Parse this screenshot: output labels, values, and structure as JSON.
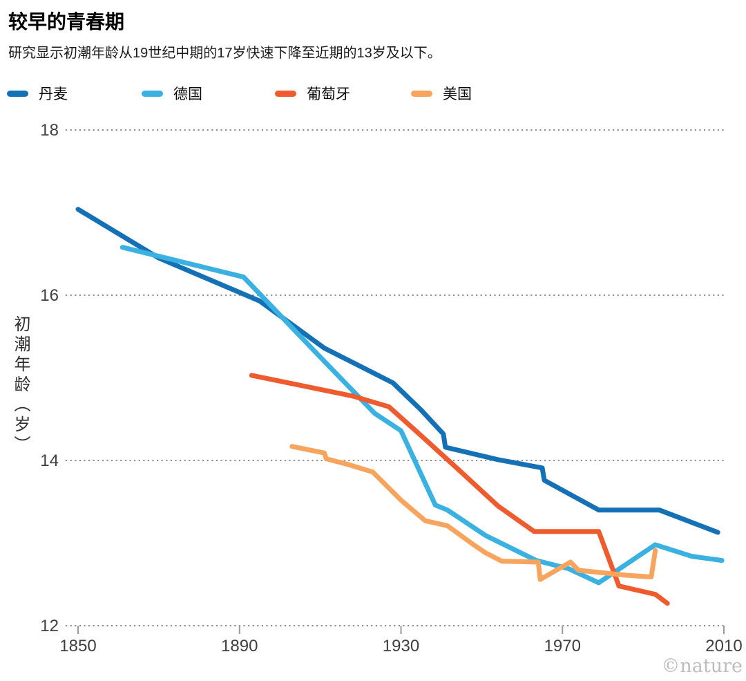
{
  "chart_data": {
    "type": "line",
    "title": "较早的青春期",
    "subtitle": "研究显示初潮年龄从19世纪中期的17岁快速下降至近期的13岁及以下。",
    "ylabel": "初潮年龄（岁）",
    "watermark": "©nature",
    "xlim": [
      1850,
      2010
    ],
    "ylim": [
      12,
      18
    ],
    "xticks": [
      1850,
      1890,
      1930,
      1970,
      2010
    ],
    "yticks": [
      18,
      16,
      14,
      12
    ],
    "grid": "horizontal-dotted",
    "legend_position": "top-left",
    "colors": {
      "grid": "#8c8c8c",
      "tick": "#9a9a9a",
      "axis_text": "#3f3f3f"
    },
    "series": [
      {
        "id": "denmark",
        "name": "丹麦",
        "color": "#1571b5",
        "points": [
          [
            1850,
            17.04
          ],
          [
            1870,
            16.45
          ],
          [
            1895,
            15.93
          ],
          [
            1911,
            15.36
          ],
          [
            1928,
            14.94
          ],
          [
            1935,
            14.61
          ],
          [
            1940.5,
            14.32
          ],
          [
            1941,
            14.16
          ],
          [
            1954,
            14.01
          ],
          [
            1965,
            13.91
          ],
          [
            1965.5,
            13.76
          ],
          [
            1979,
            13.4
          ],
          [
            1994,
            13.4
          ],
          [
            2008.5,
            13.13
          ]
        ]
      },
      {
        "id": "germany",
        "name": "德国",
        "color": "#3bb1e2",
        "points": [
          [
            1861,
            16.58
          ],
          [
            1891,
            16.22
          ],
          [
            1911,
            15.2
          ],
          [
            1923.5,
            14.57
          ],
          [
            1930,
            14.36
          ],
          [
            1938.5,
            13.46
          ],
          [
            1941.5,
            13.4
          ],
          [
            1951,
            13.09
          ],
          [
            1963.5,
            12.79
          ],
          [
            1971.5,
            12.69
          ],
          [
            1979,
            12.52
          ],
          [
            1993,
            12.98
          ],
          [
            2002,
            12.84
          ],
          [
            2009.5,
            12.79
          ]
        ]
      },
      {
        "id": "portugal",
        "name": "葡萄牙",
        "color": "#ee5b2e",
        "points": [
          [
            1893,
            15.03
          ],
          [
            1918,
            14.78
          ],
          [
            1927,
            14.65
          ],
          [
            1935,
            14.3
          ],
          [
            1944,
            13.9
          ],
          [
            1954,
            13.45
          ],
          [
            1963,
            13.14
          ],
          [
            1979,
            13.14
          ],
          [
            1984,
            12.48
          ],
          [
            1993,
            12.38
          ],
          [
            1996,
            12.27
          ]
        ]
      },
      {
        "id": "usa",
        "name": "美国",
        "color": "#f7a55e",
        "points": [
          [
            1903,
            14.17
          ],
          [
            1911,
            14.09
          ],
          [
            1911.5,
            14.02
          ],
          [
            1917,
            13.95
          ],
          [
            1923,
            13.86
          ],
          [
            1930,
            13.52
          ],
          [
            1936,
            13.27
          ],
          [
            1941.5,
            13.21
          ],
          [
            1948,
            12.98
          ],
          [
            1951,
            12.88
          ],
          [
            1955,
            12.78
          ],
          [
            1964,
            12.77
          ],
          [
            1964.5,
            12.56
          ],
          [
            1972,
            12.77
          ],
          [
            1974,
            12.67
          ],
          [
            1986,
            12.61
          ],
          [
            1992,
            12.59
          ],
          [
            1993,
            12.91
          ]
        ]
      }
    ]
  }
}
